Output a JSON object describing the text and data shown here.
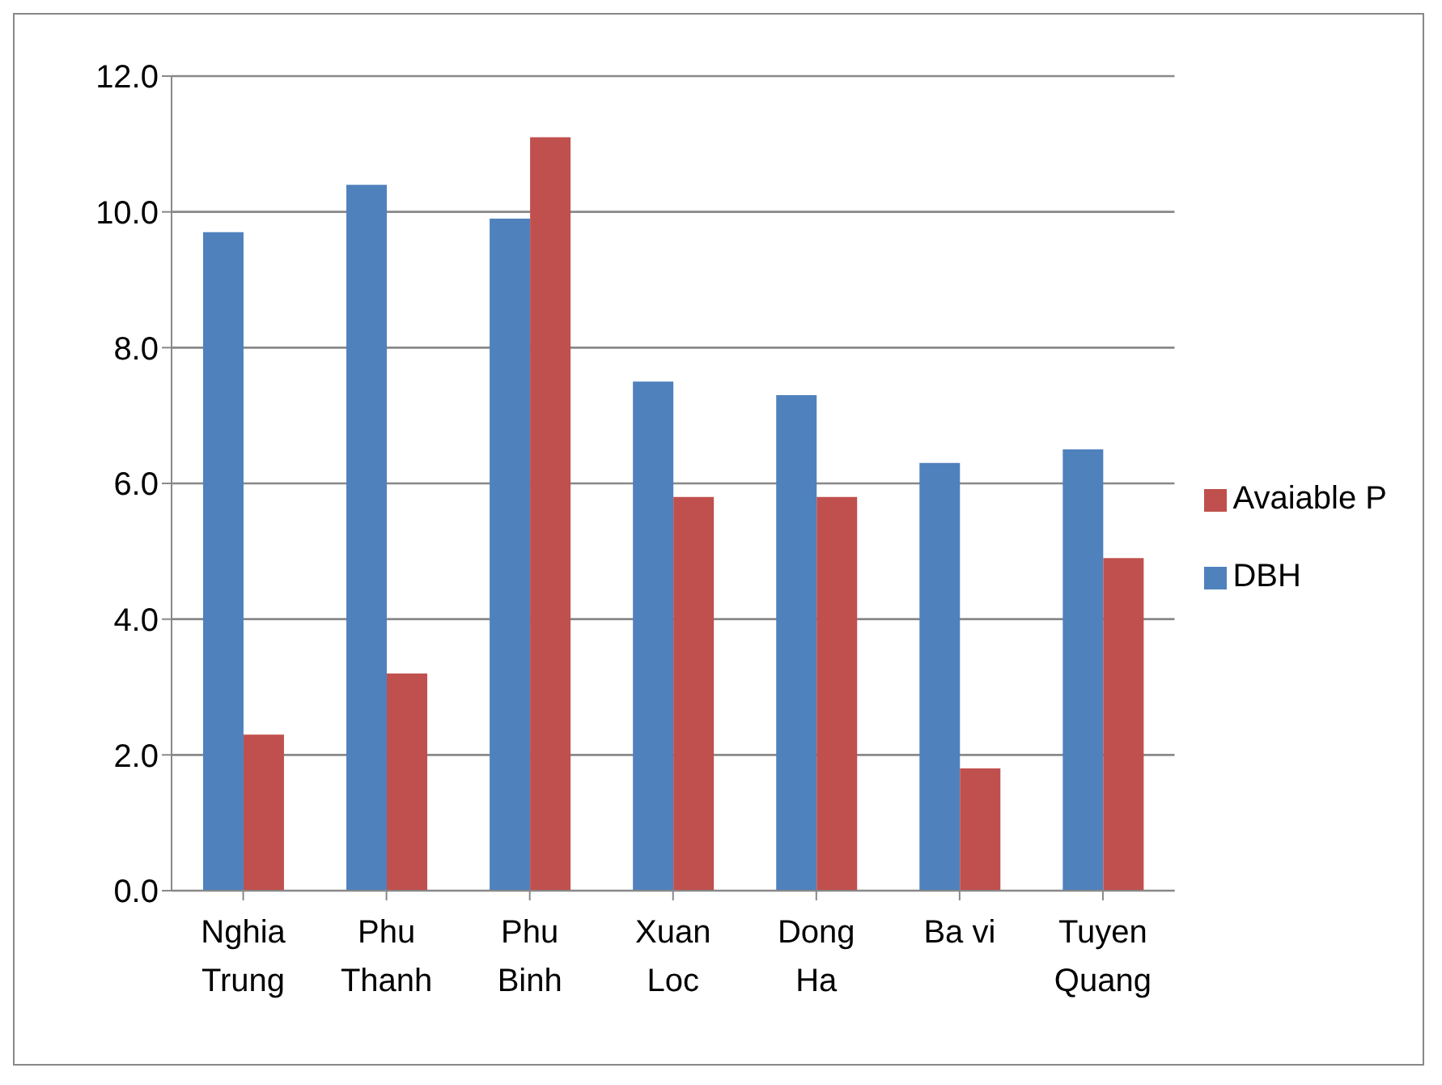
{
  "chart_data": {
    "type": "bar",
    "categories": [
      "Nghia Trung",
      "Phu Thanh",
      "Phu Binh",
      "Xuan Loc",
      "Dong Ha",
      "Ba vi",
      "Tuyen Quang"
    ],
    "series": [
      {
        "name": "DBH",
        "color": "#4f81bd",
        "values": [
          9.7,
          10.4,
          9.9,
          7.5,
          7.3,
          6.3,
          6.5
        ]
      },
      {
        "name": "Avaiable P",
        "color": "#c0504d",
        "values": [
          2.3,
          3.2,
          11.1,
          5.8,
          5.8,
          1.8,
          4.9
        ]
      }
    ],
    "ylim": [
      0,
      12
    ],
    "yticks": [
      {
        "value": 0,
        "label": "0.0"
      },
      {
        "value": 2,
        "label": "2.0"
      },
      {
        "value": 4,
        "label": "4.0"
      },
      {
        "value": 6,
        "label": "6.0"
      },
      {
        "value": 8,
        "label": "8.0"
      },
      {
        "value": 10,
        "label": "10.0"
      },
      {
        "value": 12,
        "label": "12.0"
      }
    ],
    "grid": "y",
    "legend": "right"
  }
}
